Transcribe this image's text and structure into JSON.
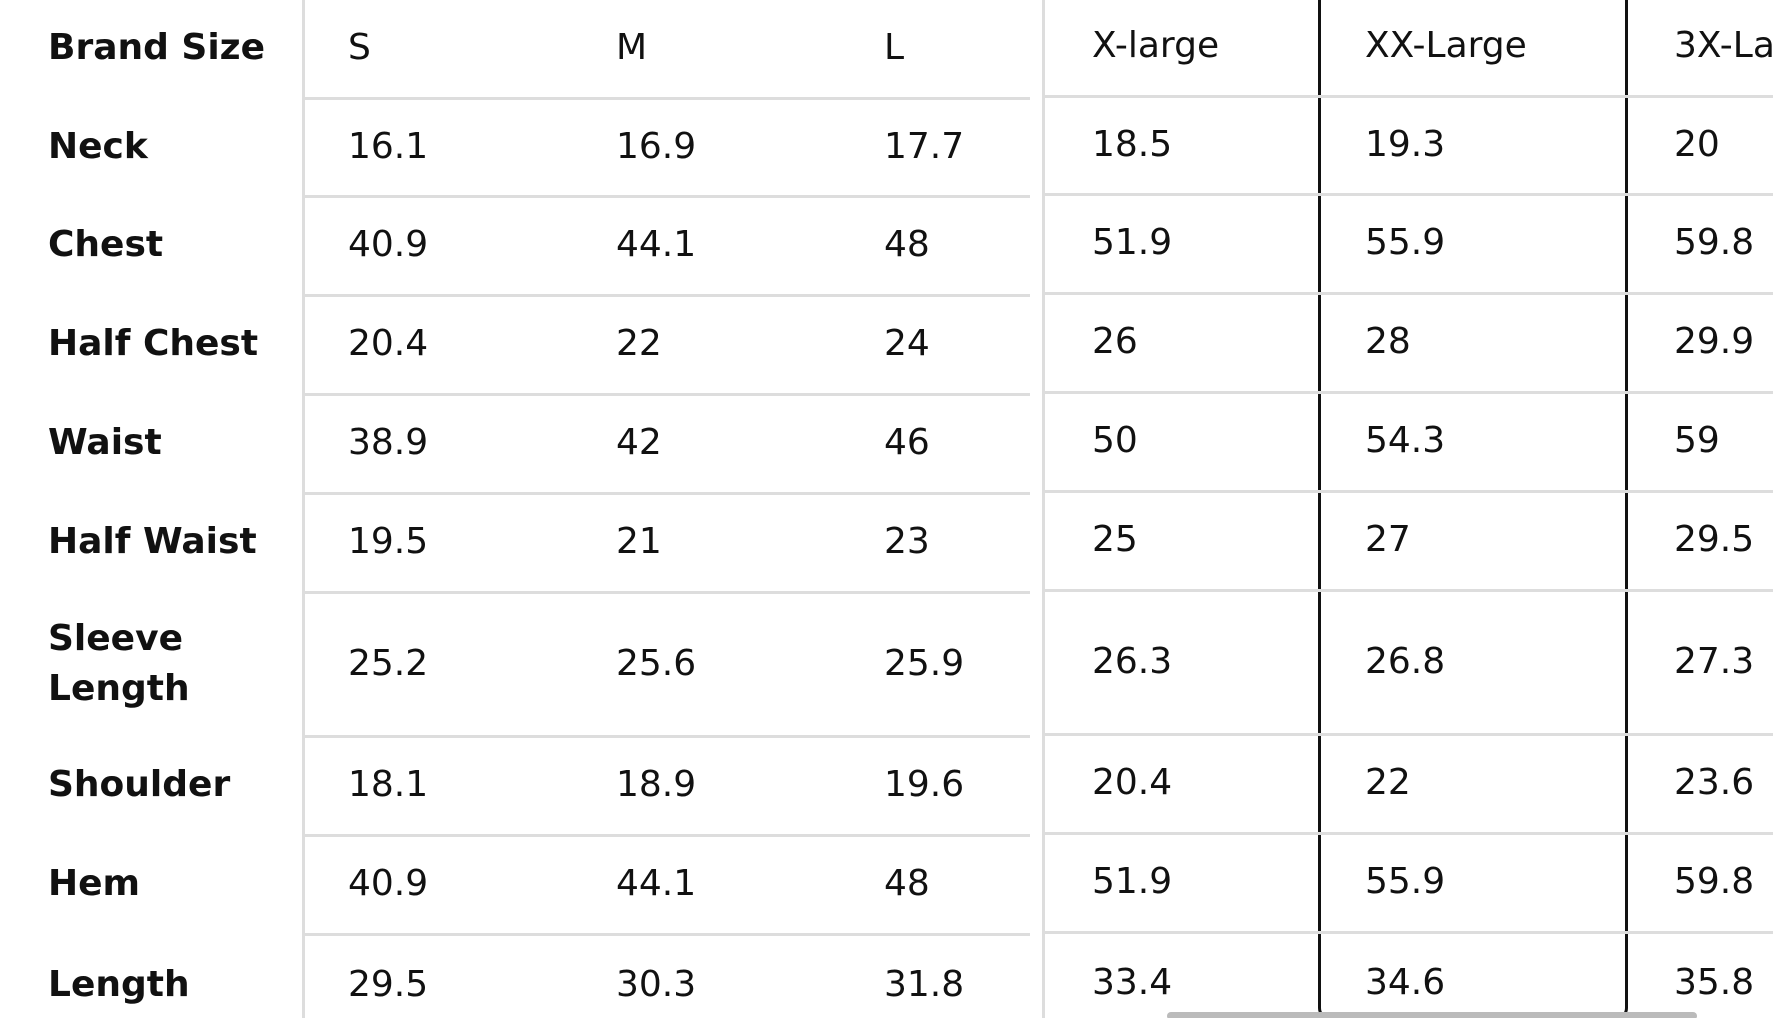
{
  "table": {
    "header": [
      "Brand Size",
      "S",
      "M",
      "L",
      "X-large",
      "XX-Large",
      "3X-La"
    ],
    "rows": [
      {
        "label": "Neck",
        "values": [
          "16.1",
          "16.9",
          "17.7",
          "18.5",
          "19.3",
          "20"
        ]
      },
      {
        "label": "Chest",
        "values": [
          "40.9",
          "44.1",
          "48",
          "51.9",
          "55.9",
          "59.8"
        ]
      },
      {
        "label": "Half Chest",
        "values": [
          "20.4",
          "22",
          "24",
          "26",
          "28",
          "29.9"
        ]
      },
      {
        "label": "Waist",
        "values": [
          "38.9",
          "42",
          "46",
          "50",
          "54.3",
          "59"
        ]
      },
      {
        "label": "Half Waist",
        "values": [
          "19.5",
          "21",
          "23",
          "25",
          "27",
          "29.5"
        ]
      },
      {
        "label": "Sleeve Length",
        "values": [
          "25.2",
          "25.6",
          "25.9",
          "26.3",
          "26.8",
          "27.3"
        ]
      },
      {
        "label": "Shoulder",
        "values": [
          "18.1",
          "18.9",
          "19.6",
          "20.4",
          "22",
          "23.6"
        ]
      },
      {
        "label": "Hem",
        "values": [
          "40.9",
          "44.1",
          "48",
          "51.9",
          "55.9",
          "59.8"
        ]
      },
      {
        "label": "Length",
        "values": [
          "29.5",
          "30.3",
          "31.8",
          "33.4",
          "34.6",
          "35.8"
        ]
      }
    ]
  }
}
